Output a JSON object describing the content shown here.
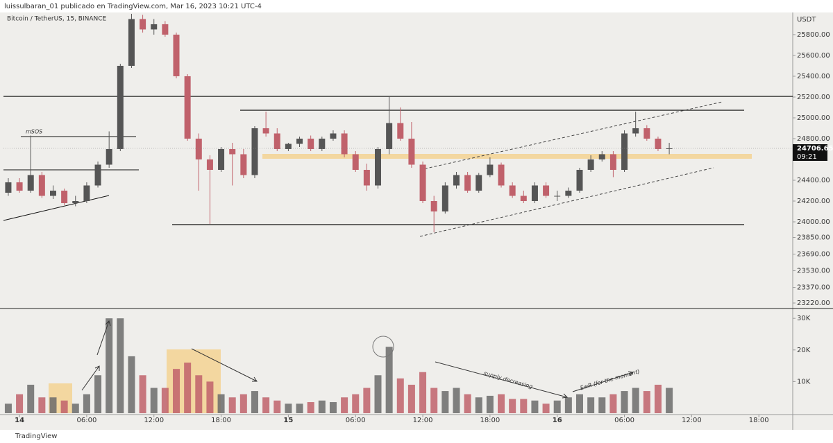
{
  "header": {
    "publisher": "luissulbaran_01 publicado en TradingView.com, Mar 16, 2023 10:21 UTC-4",
    "symbol": "Bitcoin / TetherUS, 15, BINANCE",
    "footer": "TradingView"
  },
  "annotations": {
    "msos": "mSOS",
    "supply": "supply decreasing",
    "ewr": "EwR (for the moment)"
  },
  "chart_data": [
    {
      "type": "candlestick",
      "currency": "USDT",
      "up_color": "#555555",
      "down_color": "#c0616b",
      "last_price": 24706.65,
      "countdown": "09:21",
      "xlim": [
        -1.43,
        68.9
      ],
      "ylim": [
        23167,
        26013
      ],
      "yticks": [
        {
          "value": 23220,
          "label": "23220.00"
        },
        {
          "value": 23370,
          "label": "23370.00"
        },
        {
          "value": 23530,
          "label": "23530.00"
        },
        {
          "value": 23690,
          "label": "23690.00"
        },
        {
          "value": 23850,
          "label": "23850.00"
        },
        {
          "value": 24000,
          "label": "24000.00"
        },
        {
          "value": 24200,
          "label": "24200.00"
        },
        {
          "value": 24400,
          "label": "24400.00"
        },
        {
          "value": 24800,
          "label": "24800.00"
        },
        {
          "value": 25000,
          "label": "25000.00"
        },
        {
          "value": 25200,
          "label": "25200.00"
        },
        {
          "value": 25400,
          "label": "25400.00"
        },
        {
          "value": 25600,
          "label": "25600.00"
        },
        {
          "value": 25800,
          "label": "25800.00"
        }
      ],
      "x": [
        -1,
        0,
        1,
        2,
        3,
        4,
        5,
        6,
        7,
        8,
        9,
        10,
        11,
        12,
        13,
        14,
        15,
        16,
        17,
        18,
        19,
        20,
        21,
        22,
        23,
        24,
        25,
        26,
        27,
        28,
        29,
        30,
        31,
        32,
        33,
        34,
        35,
        36,
        37,
        38,
        39,
        40,
        41,
        42,
        43,
        44,
        45,
        46,
        47,
        48,
        49,
        50,
        51,
        52,
        53,
        54,
        55,
        56,
        57,
        58
      ],
      "open": [
        24280,
        24380,
        24300,
        24450,
        24250,
        24300,
        24180,
        24200,
        24350,
        24550,
        24700,
        25500,
        25950,
        25850,
        25900,
        25800,
        25400,
        24800,
        24600,
        24500,
        24700,
        24650,
        24450,
        24900,
        24850,
        24700,
        24750,
        24800,
        24700,
        24800,
        24850,
        24650,
        24500,
        24350,
        24700,
        24950,
        24800,
        24550,
        24200,
        24100,
        24350,
        24450,
        24300,
        24450,
        24550,
        24350,
        24250,
        24200,
        24350,
        24250,
        24250,
        24300,
        24500,
        24600,
        24650,
        24500,
        24850,
        24900,
        24800,
        24700
      ],
      "high": [
        24420,
        24420,
        24830,
        24480,
        24350,
        24320,
        24250,
        24380,
        24580,
        24870,
        25520,
        26000,
        25990,
        25950,
        25930,
        25820,
        25420,
        24850,
        24640,
        24720,
        24760,
        24700,
        24920,
        25060,
        24900,
        24760,
        24820,
        24830,
        24820,
        24880,
        24880,
        24680,
        24560,
        24720,
        25200,
        25100,
        24960,
        24580,
        24250,
        24380,
        24480,
        24480,
        24470,
        24620,
        24570,
        24380,
        24300,
        24380,
        24380,
        24300,
        24330,
        24520,
        24640,
        24680,
        24680,
        24880,
        25060,
        24930,
        24820,
        24760
      ],
      "low": [
        24250,
        24280,
        24280,
        24230,
        24220,
        24160,
        24150,
        24180,
        24330,
        24520,
        24680,
        25480,
        25820,
        25800,
        25780,
        25380,
        24780,
        24300,
        23980,
        24480,
        24350,
        24420,
        24420,
        24820,
        24680,
        24680,
        24720,
        24680,
        24680,
        24780,
        24620,
        24480,
        24300,
        24320,
        24650,
        24780,
        24520,
        24180,
        23900,
        24080,
        24320,
        24280,
        24280,
        24430,
        24330,
        24230,
        24180,
        24180,
        24230,
        24200,
        24230,
        24280,
        24480,
        24580,
        24430,
        24480,
        24820,
        24780,
        24680,
        24650
      ],
      "close": [
        24380,
        24300,
        24450,
        24250,
        24300,
        24180,
        24200,
        24350,
        24550,
        24700,
        25500,
        25950,
        25850,
        25900,
        25800,
        25400,
        24800,
        24600,
        24500,
        24700,
        24650,
        24450,
        24900,
        24850,
        24700,
        24750,
        24800,
        24700,
        24800,
        24850,
        24650,
        24500,
        24350,
        24700,
        24950,
        24800,
        24550,
        24200,
        24100,
        24350,
        24450,
        24300,
        24450,
        24550,
        24350,
        24250,
        24200,
        24350,
        24250,
        24250,
        24300,
        24500,
        24600,
        24650,
        24500,
        24850,
        24900,
        24800,
        24700,
        24706.65
      ]
    },
    {
      "type": "bar",
      "xlim": [
        -1.43,
        68.9
      ],
      "ylim": [
        0,
        32667
      ],
      "yticks": [
        {
          "value": 10000,
          "label": "10K"
        },
        {
          "value": 20000,
          "label": "20K"
        },
        {
          "value": 30000,
          "label": "30K"
        }
      ],
      "xticks": [
        {
          "value": 0,
          "label": "14"
        },
        {
          "value": 6,
          "label": "06:00"
        },
        {
          "value": 12,
          "label": "12:00"
        },
        {
          "value": 18,
          "label": "18:00"
        },
        {
          "value": 24,
          "label": "15"
        },
        {
          "value": 30,
          "label": "06:00"
        },
        {
          "value": 36,
          "label": "12:00"
        },
        {
          "value": 42,
          "label": "18:00"
        },
        {
          "value": 48,
          "label": "16"
        },
        {
          "value": 54,
          "label": "06:00"
        },
        {
          "value": 60,
          "label": "12:00"
        },
        {
          "value": 66,
          "label": "18:00"
        }
      ],
      "x": [
        -1,
        0,
        1,
        2,
        3,
        4,
        5,
        6,
        7,
        8,
        9,
        10,
        11,
        12,
        13,
        14,
        15,
        16,
        17,
        18,
        19,
        20,
        21,
        22,
        23,
        24,
        25,
        26,
        27,
        28,
        29,
        30,
        31,
        32,
        33,
        34,
        35,
        36,
        37,
        38,
        39,
        40,
        41,
        42,
        43,
        44,
        45,
        46,
        47,
        48,
        49,
        50,
        51,
        52,
        53,
        54,
        55,
        56,
        57,
        58
      ],
      "values": [
        3000,
        6000,
        9000,
        5000,
        5000,
        4000,
        3000,
        6000,
        12000,
        30000,
        30000,
        18000,
        12000,
        8000,
        8000,
        14000,
        16000,
        12000,
        10000,
        6000,
        5000,
        6000,
        7000,
        5000,
        4000,
        3000,
        3000,
        3500,
        4000,
        3500,
        5000,
        6000,
        8000,
        12000,
        21000,
        11000,
        9000,
        13000,
        8000,
        7000,
        8000,
        6000,
        5000,
        5500,
        6000,
        4500,
        4500,
        4000,
        3000,
        4000,
        5000,
        6000,
        5000,
        5000,
        6000,
        7000,
        8000,
        7000,
        9000,
        8000
      ]
    }
  ]
}
